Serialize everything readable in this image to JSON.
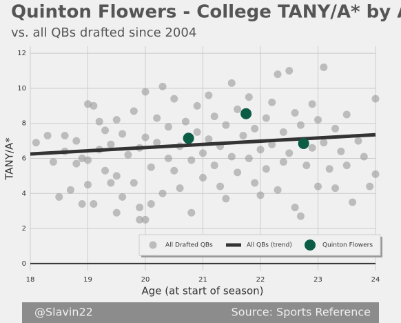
{
  "chart_data": {
    "type": "scatter",
    "title": "Quinton Flowers - College TANY/A* by Age",
    "subtitle": "vs. all QBs drafted since 2004",
    "x_label": "Age (at start of season)",
    "y_label": "TANY/A*",
    "xlim": [
      18,
      24
    ],
    "xticks": [
      18,
      19,
      20,
      21,
      22,
      23,
      24
    ],
    "ylim": [
      -0.4,
      12.4
    ],
    "yticks": [
      0,
      2,
      4,
      6,
      8,
      10,
      12
    ],
    "grid": true,
    "legend": "lower right",
    "series": [
      {
        "name": "All Drafted QBs",
        "color": "#9a9a9a",
        "x": [
          18.1,
          18.3,
          18.4,
          18.5,
          18.6,
          18.6,
          18.7,
          18.8,
          18.8,
          18.9,
          18.9,
          19.0,
          19.0,
          19.0,
          19.1,
          19.1,
          19.2,
          19.2,
          19.3,
          19.3,
          19.4,
          19.4,
          19.5,
          19.5,
          19.5,
          19.6,
          19.6,
          19.7,
          19.8,
          19.8,
          19.9,
          19.9,
          19.9,
          20.0,
          20.0,
          20.0,
          20.1,
          20.1,
          20.2,
          20.2,
          20.3,
          20.3,
          20.4,
          20.4,
          20.5,
          20.5,
          20.6,
          20.6,
          20.7,
          20.8,
          20.8,
          20.9,
          20.9,
          21.0,
          21.0,
          21.1,
          21.1,
          21.2,
          21.2,
          21.3,
          21.3,
          21.4,
          21.4,
          21.5,
          21.5,
          21.6,
          21.6,
          21.7,
          21.8,
          21.8,
          21.9,
          21.9,
          22.0,
          22.0,
          22.1,
          22.1,
          22.2,
          22.2,
          22.3,
          22.3,
          22.4,
          22.4,
          22.5,
          22.5,
          22.6,
          22.6,
          22.7,
          22.7,
          22.8,
          22.9,
          22.9,
          23.0,
          23.0,
          23.1,
          23.1,
          23.2,
          23.3,
          23.3,
          23.4,
          23.5,
          23.5,
          23.6,
          23.7,
          23.8,
          23.9,
          24.0,
          24.0
        ],
        "values": [
          6.9,
          7.3,
          5.8,
          3.8,
          6.4,
          7.3,
          4.2,
          5.7,
          7.0,
          6.0,
          3.4,
          9.1,
          4.5,
          5.9,
          3.4,
          9.0,
          6.5,
          8.1,
          5.3,
          7.6,
          4.6,
          6.8,
          2.9,
          5.0,
          8.2,
          3.8,
          7.4,
          6.2,
          4.6,
          8.7,
          2.5,
          6.6,
          3.2,
          9.8,
          2.5,
          7.2,
          5.5,
          3.4,
          8.3,
          6.9,
          4.0,
          10.1,
          6.0,
          7.8,
          5.3,
          9.4,
          4.3,
          6.7,
          8.1,
          5.9,
          2.9,
          7.5,
          9.0,
          6.3,
          4.9,
          9.6,
          7.1,
          5.6,
          8.4,
          6.7,
          4.4,
          7.9,
          3.7,
          10.3,
          6.1,
          8.8,
          5.2,
          7.3,
          6.0,
          9.5,
          4.6,
          7.7,
          6.5,
          3.9,
          8.3,
          5.4,
          9.2,
          6.8,
          4.2,
          10.8,
          7.5,
          5.8,
          11.0,
          6.3,
          8.6,
          3.2,
          7.9,
          2.7,
          5.6,
          9.1,
          6.6,
          4.4,
          8.2,
          6.9,
          11.2,
          5.4,
          7.7,
          4.3,
          6.4,
          8.5,
          5.6,
          3.5,
          7.0,
          6.1,
          4.4,
          9.4,
          5.1
        ]
      },
      {
        "name": "All QBs (trend)",
        "color": "#333333",
        "type": "line",
        "x": [
          18,
          24
        ],
        "values": [
          6.25,
          7.35
        ]
      },
      {
        "name": "Quinton Flowers",
        "color": "#0b5c44",
        "x": [
          20.75,
          21.75,
          22.75
        ],
        "values": [
          7.15,
          8.55,
          6.85
        ]
      }
    ]
  },
  "footer": {
    "left": "@Slavin22",
    "right": "Source: Sports Reference"
  }
}
